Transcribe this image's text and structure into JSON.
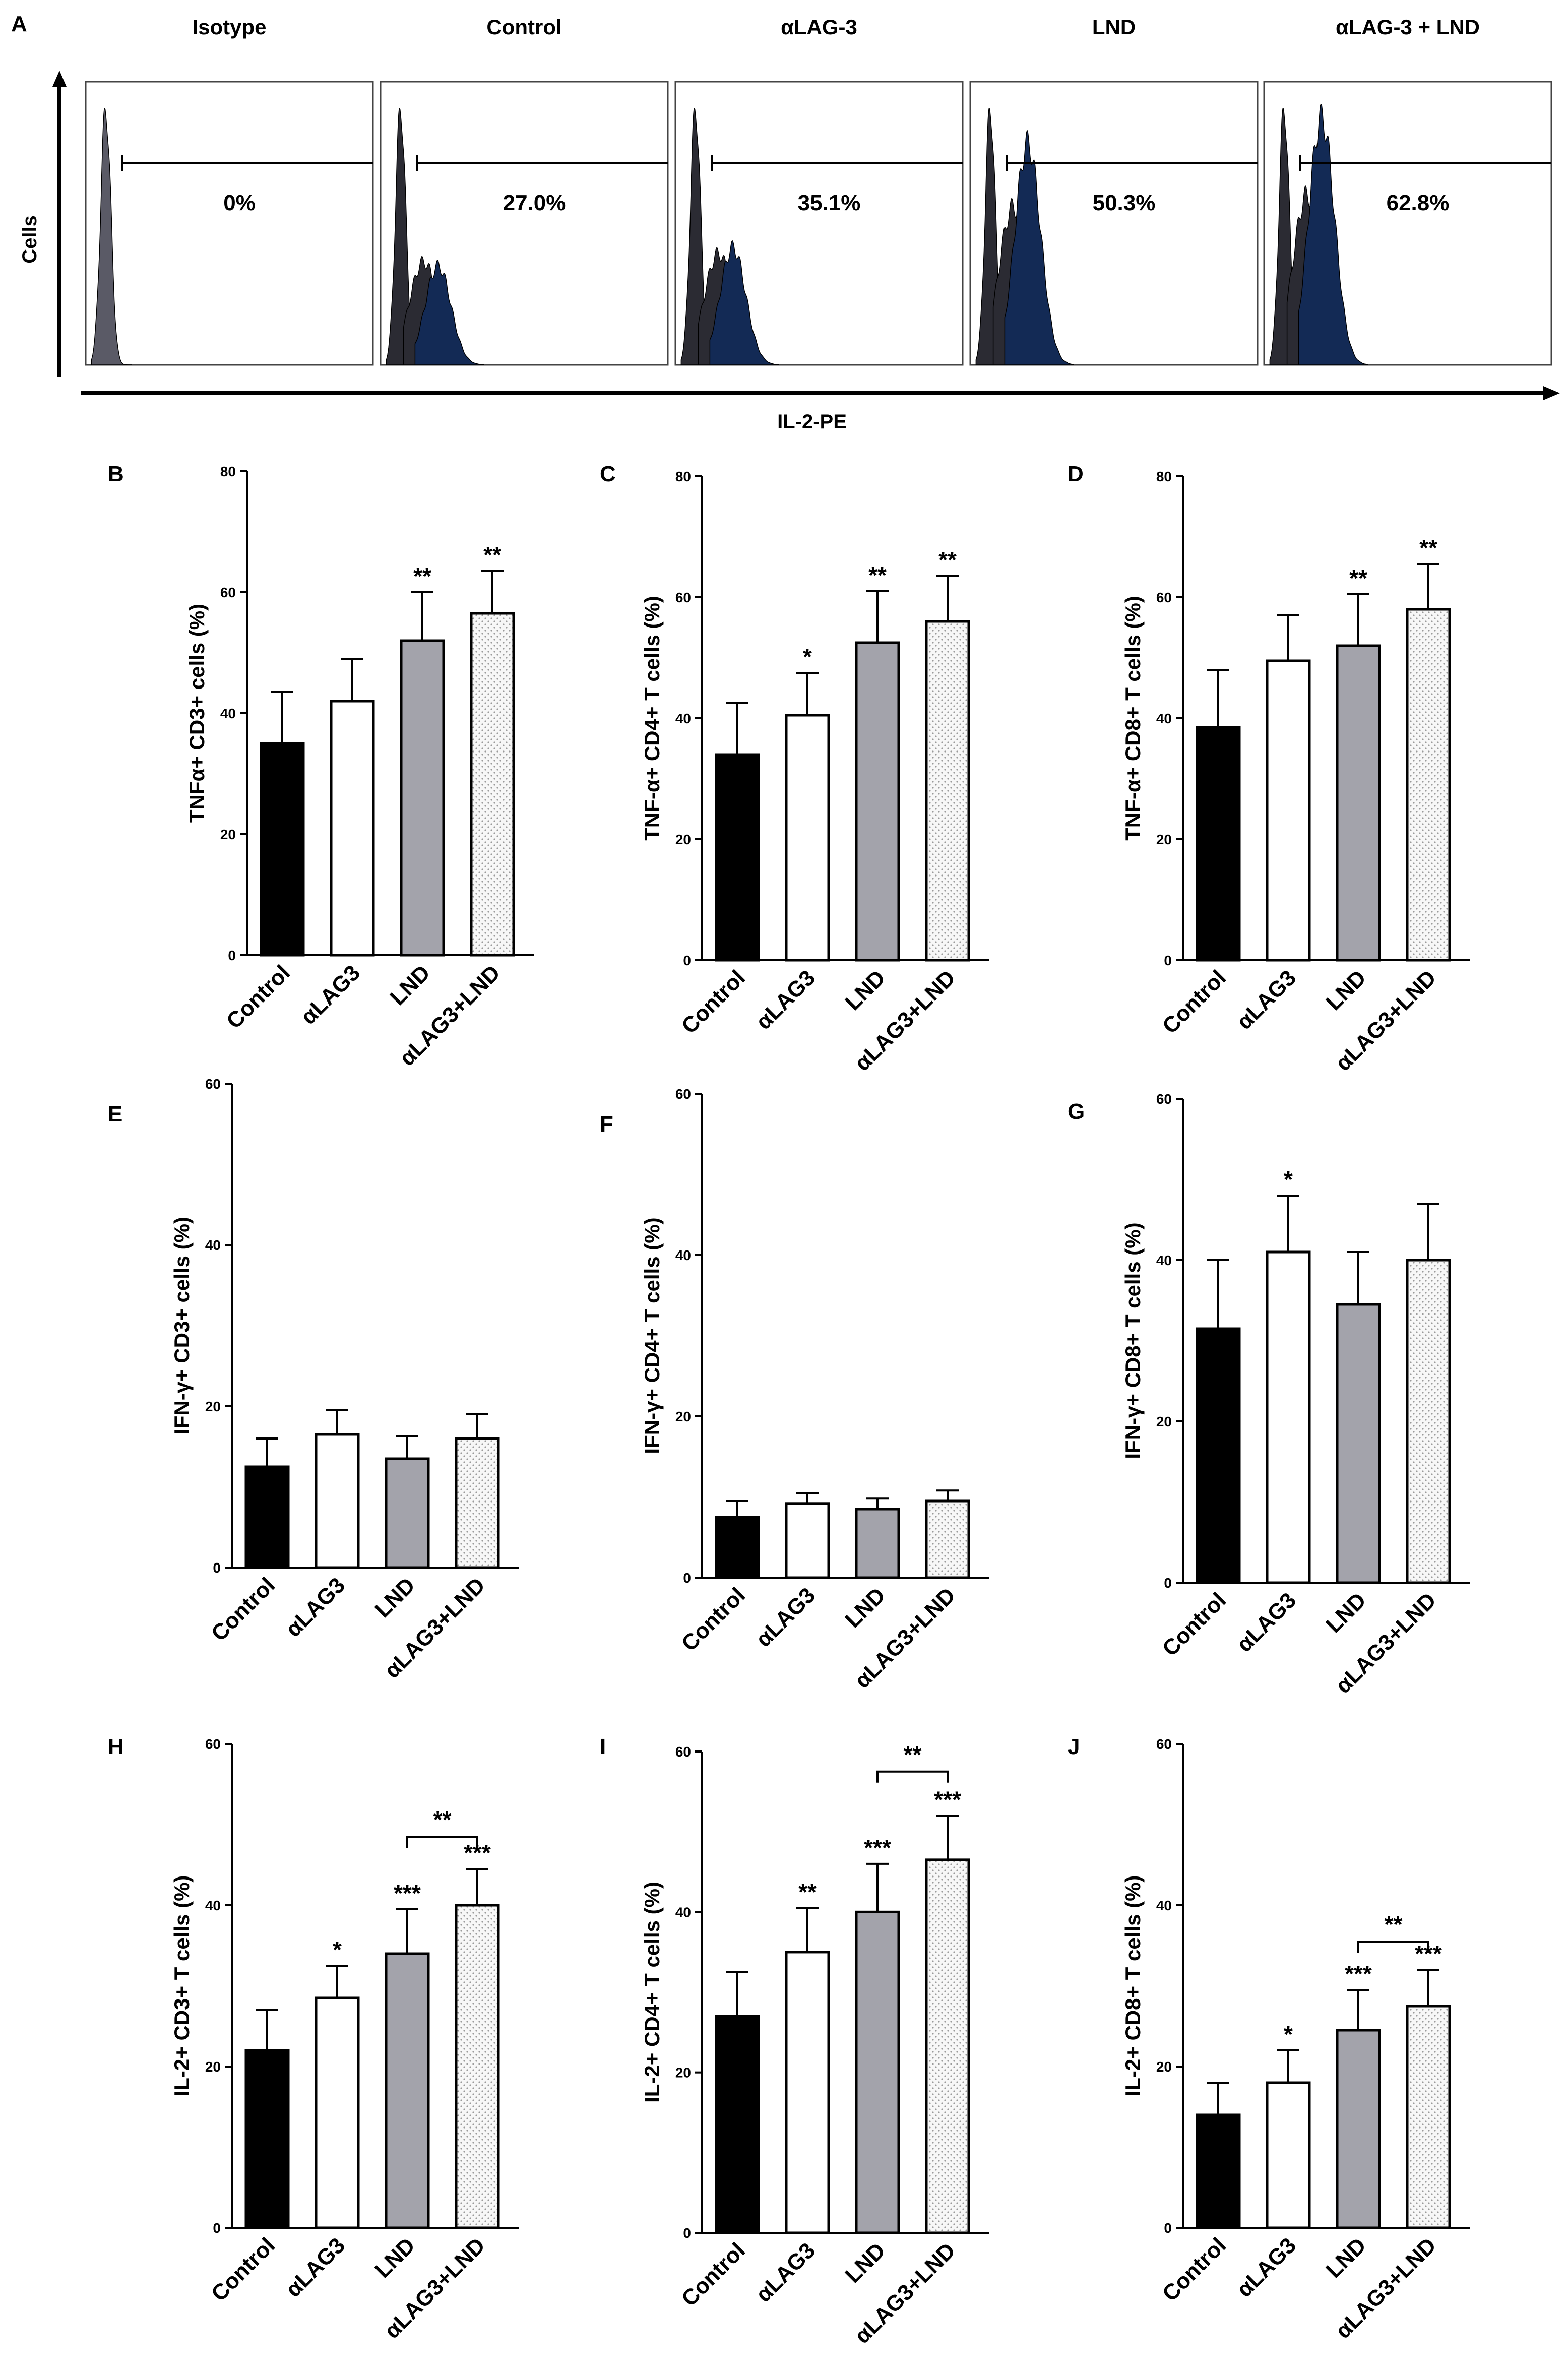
{
  "panel_a": {
    "label": "A",
    "y_axis_label": "Cells",
    "x_axis_label": "IL-2-PE",
    "histograms": [
      {
        "title": "Isotype",
        "percent": "0%"
      },
      {
        "title": "Control",
        "percent": "27.0%"
      },
      {
        "title": "αLAG-3",
        "percent": "35.1%"
      },
      {
        "title": "LND",
        "percent": "50.3%"
      },
      {
        "title": "αLAG-3 + LND",
        "percent": "62.8%"
      }
    ],
    "colors": {
      "isotype": "#5a5a66",
      "negative": "#2b2b33",
      "positive": "#132a55"
    }
  },
  "bar_colors": [
    "#000000",
    "#ffffff",
    "#a3a3ab",
    "#f2f2f2"
  ],
  "chart_data": [
    {
      "panel": "B",
      "type": "bar",
      "ylabel": "TNFα+ CD3+ cells (%)",
      "ylim": [
        0,
        80
      ],
      "yticks": [
        0,
        20,
        40,
        60,
        80
      ],
      "categories": [
        "Control",
        "αLAG3",
        "LND",
        "αLAG3+LND"
      ],
      "values": [
        35,
        42,
        52,
        56.5
      ],
      "errors": [
        8.5,
        7,
        8,
        7
      ],
      "stars": [
        "",
        "",
        "**",
        "**"
      ],
      "bracket": null
    },
    {
      "panel": "C",
      "type": "bar",
      "ylabel": "TNF-α+ CD4+ T cells (%)",
      "ylim": [
        0,
        80
      ],
      "yticks": [
        0,
        20,
        40,
        60,
        80
      ],
      "categories": [
        "Control",
        "αLAG3",
        "LND",
        "αLAG3+LND"
      ],
      "values": [
        34,
        40.5,
        52.5,
        56
      ],
      "errors": [
        8.5,
        7,
        8.5,
        7.5
      ],
      "stars": [
        "",
        "*",
        "**",
        "**"
      ],
      "bracket": null
    },
    {
      "panel": "D",
      "type": "bar",
      "ylabel": "TNF-α+ CD8+ T cells (%)",
      "ylim": [
        0,
        80
      ],
      "yticks": [
        0,
        20,
        40,
        60,
        80
      ],
      "categories": [
        "Control",
        "αLAG3",
        "LND",
        "αLAG3+LND"
      ],
      "values": [
        38.5,
        49.5,
        52,
        58
      ],
      "errors": [
        9.5,
        7.5,
        8.5,
        7.5
      ],
      "stars": [
        "",
        "",
        "**",
        "**"
      ],
      "bracket": null
    },
    {
      "panel": "E",
      "type": "bar",
      "ylabel": "IFN-γ+ CD3+ cells (%)",
      "ylim": [
        0,
        60
      ],
      "yticks": [
        0,
        20,
        40,
        60
      ],
      "categories": [
        "Control",
        "αLAG3",
        "LND",
        "αLAG3+LND"
      ],
      "values": [
        12.5,
        16.5,
        13.5,
        16
      ],
      "errors": [
        3.5,
        3,
        2.8,
        3
      ],
      "stars": [
        "",
        "",
        "",
        ""
      ],
      "bracket": null
    },
    {
      "panel": "F",
      "type": "bar",
      "ylabel": "IFN-γ+ CD4+ T cells (%)",
      "ylim": [
        0,
        60
      ],
      "yticks": [
        0,
        20,
        40,
        60
      ],
      "categories": [
        "Control",
        "αLAG3",
        "LND",
        "αLAG3+LND"
      ],
      "values": [
        7.5,
        9.2,
        8.5,
        9.5
      ],
      "errors": [
        2,
        1.3,
        1.3,
        1.3
      ],
      "stars": [
        "",
        "",
        "",
        ""
      ],
      "bracket": null
    },
    {
      "panel": "G",
      "type": "bar",
      "ylabel": "IFN-γ+ CD8+ T cells (%)",
      "ylim": [
        0,
        60
      ],
      "yticks": [
        0,
        20,
        40,
        60
      ],
      "categories": [
        "Control",
        "αLAG3",
        "LND",
        "αLAG3+LND"
      ],
      "values": [
        31.5,
        41,
        34.5,
        40
      ],
      "errors": [
        8.5,
        7,
        6.5,
        7
      ],
      "stars": [
        "",
        "*",
        "",
        ""
      ],
      "bracket": null
    },
    {
      "panel": "H",
      "type": "bar",
      "ylabel": "IL-2+ CD3+ T cells (%)",
      "ylim": [
        0,
        60
      ],
      "yticks": [
        0,
        20,
        40,
        60
      ],
      "categories": [
        "Control",
        "αLAG3",
        "LND",
        "αLAG3+LND"
      ],
      "values": [
        22,
        28.5,
        34,
        40
      ],
      "errors": [
        5,
        4,
        5.5,
        4.5
      ],
      "stars": [
        "",
        "*",
        "***",
        "***"
      ],
      "bracket": {
        "from": 2,
        "to": 3,
        "y": 48.5,
        "label": "**"
      }
    },
    {
      "panel": "I",
      "type": "bar",
      "ylabel": "IL-2+ CD4+ T cells (%)",
      "ylim": [
        0,
        60
      ],
      "yticks": [
        0,
        20,
        40,
        60
      ],
      "categories": [
        "Control",
        "αLAG3",
        "LND",
        "αLAG3+LND"
      ],
      "values": [
        27,
        35,
        40,
        46.5
      ],
      "errors": [
        5.5,
        5.5,
        6,
        5.5
      ],
      "stars": [
        "",
        "**",
        "***",
        "***"
      ],
      "bracket": {
        "from": 2,
        "to": 3,
        "y": 57.5,
        "label": "**"
      }
    },
    {
      "panel": "J",
      "type": "bar",
      "ylabel": "IL-2+ CD8+ T cells (%)",
      "ylim": [
        0,
        60
      ],
      "yticks": [
        0,
        20,
        40,
        60
      ],
      "categories": [
        "Control",
        "αLAG3",
        "LND",
        "αLAG3+LND"
      ],
      "values": [
        14,
        18,
        24.5,
        27.5
      ],
      "errors": [
        4,
        4,
        5,
        4.5
      ],
      "stars": [
        "",
        "*",
        "***",
        "***"
      ],
      "bracket": {
        "from": 2,
        "to": 3,
        "y": 35.5,
        "label": "**"
      }
    }
  ]
}
